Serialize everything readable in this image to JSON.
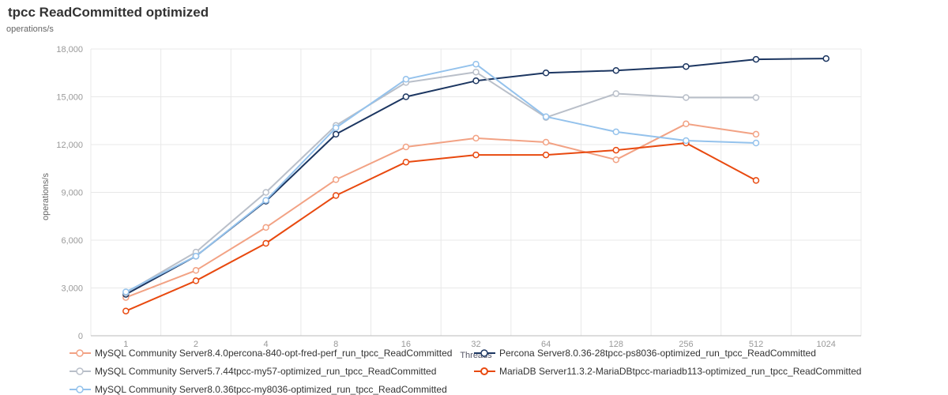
{
  "header": {
    "title": "tpcc ReadCommitted optimized",
    "subtitle": "operations/s"
  },
  "chart_data": {
    "type": "line",
    "title": "tpcc ReadCommitted optimized",
    "xlabel": "Threads",
    "ylabel": "operations/s",
    "ylim": [
      0,
      18000
    ],
    "yticks": [
      0,
      3000,
      6000,
      9000,
      12000,
      15000,
      18000
    ],
    "categories": [
      "1",
      "2",
      "4",
      "8",
      "16",
      "32",
      "64",
      "128",
      "256",
      "512",
      "1024"
    ],
    "grid": true,
    "legend_position": "bottom",
    "series": [
      {
        "name": "MySQL Community Server8.4.0percona-840-opt-fred-perf_run_tpcc_ReadCommitted",
        "color": "#f2a284",
        "values": [
          2400,
          4100,
          6800,
          9800,
          11850,
          12400,
          12150,
          11050,
          13300,
          12650,
          null
        ]
      },
      {
        "name": "Percona Server8.0.36-28tpcc-ps8036-optimized_run_tpcc_ReadCommitted",
        "color": "#1c3661",
        "values": [
          2600,
          5000,
          8450,
          12650,
          15000,
          16000,
          16500,
          16650,
          16900,
          17350,
          17400
        ]
      },
      {
        "name": "MySQL Community Server5.7.44tpcc-my57-optimized_run_tpcc_ReadCommitted",
        "color": "#b9bfc9",
        "values": [
          2700,
          5250,
          9000,
          13200,
          15900,
          16550,
          13700,
          15200,
          14950,
          14950,
          null
        ]
      },
      {
        "name": "MariaDB Server11.3.2-MariaDBtpcc-mariadb113-optimized_run_tpcc_ReadCommitted",
        "color": "#e8490f",
        "values": [
          1550,
          3450,
          5800,
          8800,
          10900,
          11350,
          11350,
          11650,
          12100,
          9750,
          null
        ]
      },
      {
        "name": "MySQL Community Server8.0.36tpcc-my8036-optimized_run_tpcc_ReadCommitted",
        "color": "#94c2ec",
        "values": [
          2750,
          5000,
          8500,
          13050,
          16100,
          17050,
          13750,
          12800,
          12250,
          12100,
          null
        ]
      }
    ]
  }
}
